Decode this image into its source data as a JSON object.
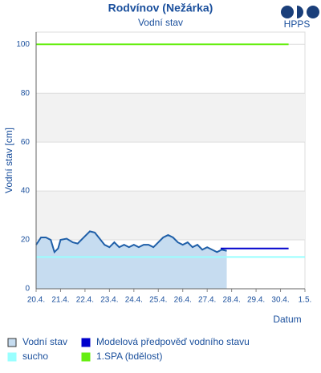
{
  "chart_data": {
    "type": "line",
    "title": "Rodvínov (Nežárka)",
    "subtitle": "Vodní stav",
    "logo_text": "HPPS",
    "y_label": "Vodní stav [cm]",
    "x_label": "Datum",
    "xlim": [
      0,
      11
    ],
    "ylim": [
      0,
      105
    ],
    "xticks": [
      {
        "value": 0,
        "label": "20.4."
      },
      {
        "value": 1,
        "label": "21.4."
      },
      {
        "value": 2,
        "label": "22.4."
      },
      {
        "value": 3,
        "label": "23.4."
      },
      {
        "value": 4,
        "label": "24.4."
      },
      {
        "value": 5,
        "label": "25.4."
      },
      {
        "value": 6,
        "label": "26.4."
      },
      {
        "value": 7,
        "label": "27.4."
      },
      {
        "value": 8,
        "label": "28.4."
      },
      {
        "value": 9,
        "label": "29.4."
      },
      {
        "value": 10,
        "label": "30.4."
      },
      {
        "value": 11,
        "label": "1.5."
      }
    ],
    "yticks": [
      0,
      20,
      40,
      60,
      80,
      100
    ],
    "grid": true,
    "series": [
      {
        "name": "Vodní stav",
        "color": "#1f5fa8",
        "fill": "#c6dcf0",
        "x": [
          0,
          0.2,
          0.4,
          0.6,
          0.75,
          0.9,
          1.0,
          1.25,
          1.5,
          1.7,
          2.0,
          2.2,
          2.4,
          2.6,
          2.8,
          3.0,
          3.2,
          3.4,
          3.6,
          3.8,
          4.0,
          4.2,
          4.4,
          4.6,
          4.8,
          5.0,
          5.2,
          5.4,
          5.6,
          5.8,
          6.0,
          6.2,
          6.4,
          6.6,
          6.8,
          7.0,
          7.2,
          7.4,
          7.6,
          7.8
        ],
        "values": [
          18,
          21,
          21,
          20,
          15,
          16.5,
          20,
          20.5,
          19,
          18.5,
          21.5,
          23.5,
          23,
          20.5,
          18,
          17,
          19,
          17,
          18,
          17,
          18,
          17,
          18,
          18,
          17,
          19,
          21,
          22,
          21,
          19,
          18,
          19,
          17,
          18,
          16,
          17,
          16,
          15,
          16,
          15.5
        ]
      },
      {
        "name": "Modelová předpověď vodního stavu",
        "color": "#0000cc",
        "x": [
          7.55,
          10.33
        ],
        "values": [
          16.5,
          16.5
        ]
      },
      {
        "name": "sucho",
        "color": "#99ffff",
        "x": [
          0,
          11
        ],
        "values": [
          13,
          13
        ]
      },
      {
        "name": "1.SPA (bdělost)",
        "color": "#66ee11",
        "x": [
          0,
          10.33
        ],
        "values": [
          100,
          100
        ]
      }
    ]
  }
}
